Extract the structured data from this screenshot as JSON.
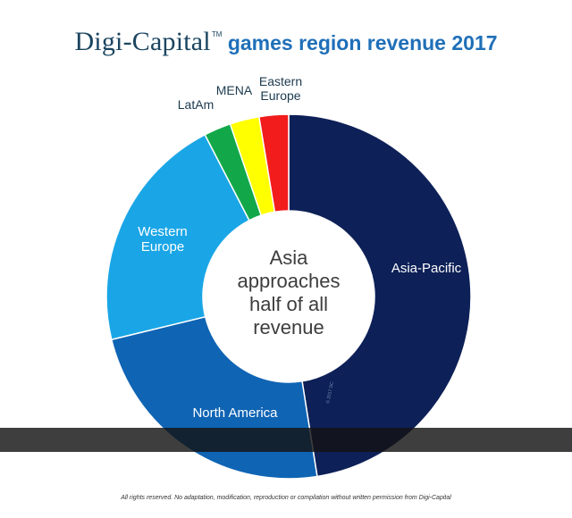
{
  "header": {
    "brand": "Digi-Capital",
    "trademark": "TM",
    "title": "games region revenue 2017"
  },
  "center_text": [
    "Asia",
    "approaches",
    "half of all",
    "revenue"
  ],
  "watermark": "© 2017 DC",
  "footer": "All rights reserved. No adaptation, modification, reproduction or compilation without written permission from Digi-Capital",
  "chart_data": {
    "type": "pie",
    "title": "games region revenue 2017",
    "style": "donut",
    "series": [
      {
        "name": "Asia-Pacific",
        "value": 47.5,
        "color": "#0d2057",
        "label": [
          "Asia-Pacific"
        ],
        "label_color": "#ffffff"
      },
      {
        "name": "North America",
        "value": 23.7,
        "color": "#0f64b4",
        "label": [
          "North America"
        ],
        "label_color": "#ffffff"
      },
      {
        "name": "Western Europe",
        "value": 21.2,
        "color": "#1aa6e6",
        "label": [
          "Western",
          "Europe"
        ],
        "label_color": "#ffffff"
      },
      {
        "name": "LatAm",
        "value": 2.4,
        "color": "#12a84a",
        "label": [
          "LatAm"
        ],
        "label_color": "#1b3a4f"
      },
      {
        "name": "MENA",
        "value": 2.6,
        "color": "#ffff00",
        "label": [
          "MENA"
        ],
        "label_color": "#1b3a4f"
      },
      {
        "name": "Eastern Europe",
        "value": 2.6,
        "color": "#f21c1c",
        "label": [
          "Eastern",
          "Europe"
        ],
        "label_color": "#1b3a4f"
      }
    ]
  }
}
